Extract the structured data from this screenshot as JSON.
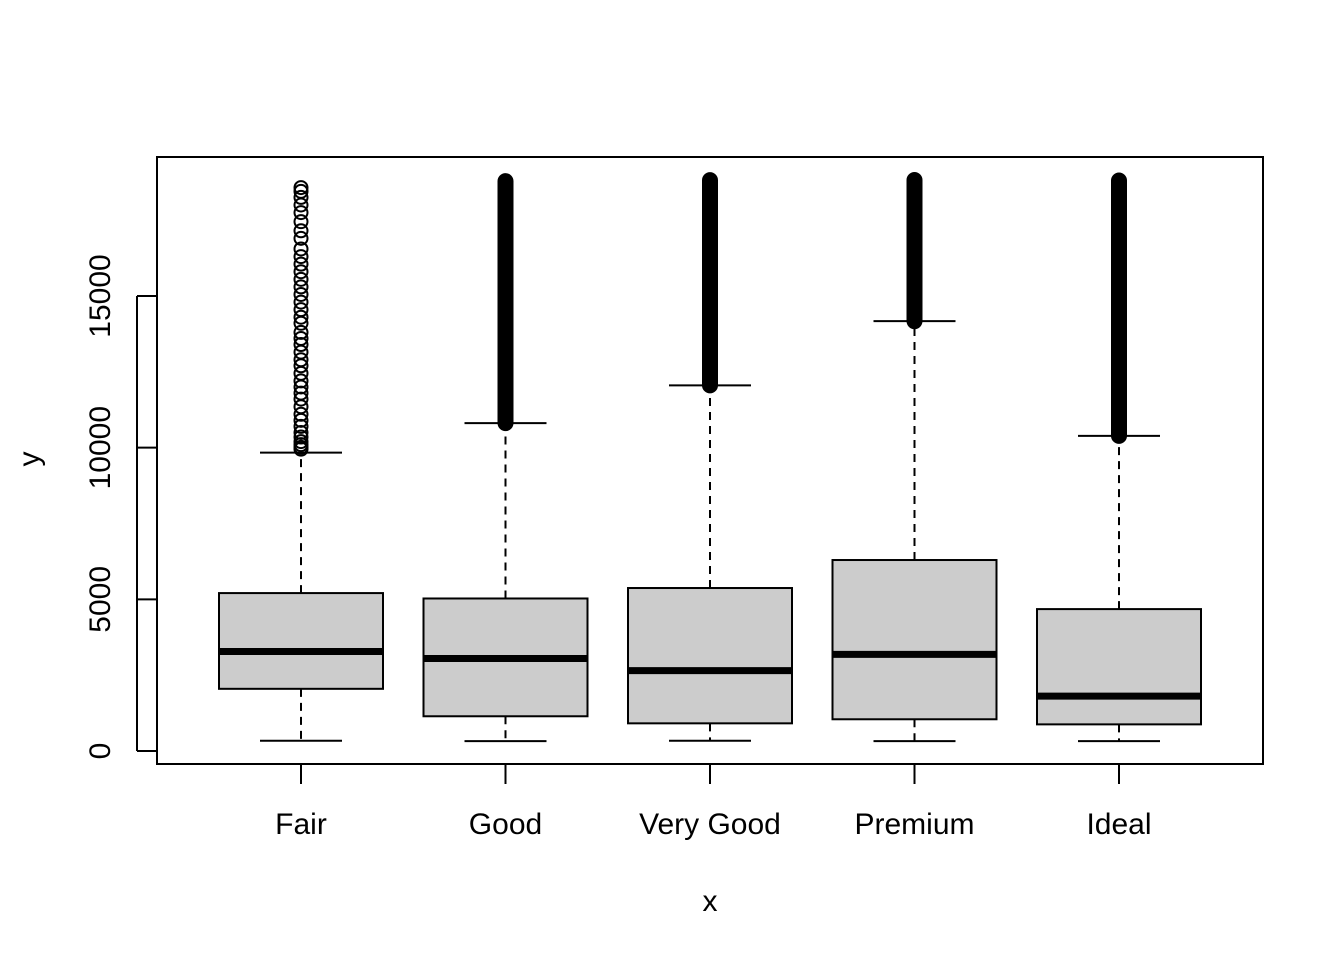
{
  "chart_data": {
    "type": "boxplot",
    "xlabel": "x",
    "ylabel": "y",
    "categories": [
      "Fair",
      "Good",
      "Very Good",
      "Premium",
      "Ideal"
    ],
    "y_ticks": [
      0,
      5000,
      10000,
      15000
    ],
    "ylim": [
      -400,
      19600
    ],
    "grid": false,
    "legend": "none",
    "box_fill": "#cccccc",
    "boxes": [
      {
        "category": "Fair",
        "whisker_low": 337,
        "q1": 2050,
        "median": 3282,
        "q3": 5206,
        "whisker_high": 9836,
        "outliers": [
          9950,
          10010,
          10100,
          10200,
          10350,
          10500,
          10700,
          10900,
          11100,
          11350,
          11600,
          11800,
          12000,
          12200,
          12450,
          12700,
          12900,
          13150,
          13400,
          13600,
          13800,
          14100,
          14300,
          14550,
          14800,
          15050,
          15300,
          15550,
          15800,
          16050,
          16300,
          16550,
          16900,
          17150,
          17450,
          17750,
          18000,
          18250,
          18450,
          18574
        ]
      },
      {
        "category": "Good",
        "whisker_low": 327,
        "q1": 1145,
        "median": 3050,
        "q3": 5028,
        "whisker_high": 10810,
        "outliers_range": [
          10810,
          18788
        ]
      },
      {
        "category": "Very Good",
        "whisker_low": 336,
        "q1": 912,
        "median": 2648,
        "q3": 5373,
        "whisker_high": 12053,
        "outliers_range": [
          12053,
          18818
        ]
      },
      {
        "category": "Premium",
        "whisker_low": 326,
        "q1": 1046,
        "median": 3185,
        "q3": 6296,
        "whisker_high": 14170,
        "outliers_range": [
          14170,
          18823
        ]
      },
      {
        "category": "Ideal",
        "whisker_low": 326,
        "q1": 878,
        "median": 1810,
        "q3": 4678,
        "whisker_high": 10390,
        "outliers_range": [
          10390,
          18806
        ]
      }
    ]
  }
}
